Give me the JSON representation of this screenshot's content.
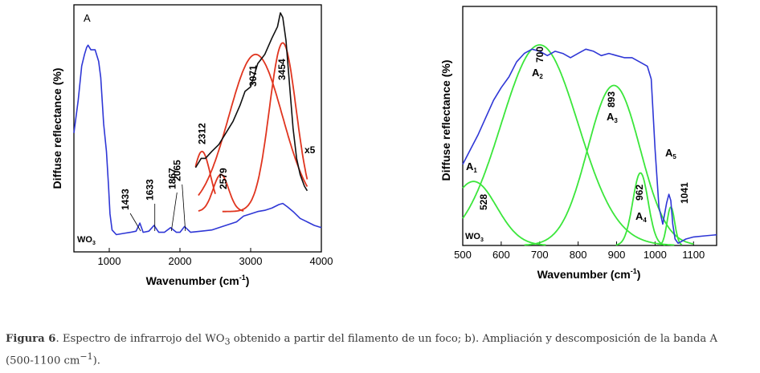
{
  "chart_data": [
    {
      "type": "line",
      "panel_label": "A",
      "xlabel": "Wavenumber (cm",
      "xlabel_sup": "-1",
      "xlabel_close": ")",
      "ylabel": "Diffuse reflectance (%)",
      "xlim": [
        500,
        4000
      ],
      "ylim": [
        0,
        1
      ],
      "grid": false,
      "x_ticks": [
        1000,
        2000,
        3000,
        4000
      ],
      "sample_label": "WO",
      "sample_sub": "3",
      "magnification_label": "x5",
      "colors": {
        "spectrum": "#2f37d6",
        "zoom": "#111111",
        "fit": "#e0351f"
      },
      "series": [
        {
          "name": "WO3 spectrum",
          "x": [
            500,
            560,
            610,
            650,
            680,
            700,
            740,
            800,
            850,
            880,
            920,
            960,
            990,
            1010,
            1040,
            1100,
            1200,
            1300,
            1380,
            1433,
            1480,
            1560,
            1633,
            1700,
            1780,
            1867,
            1950,
            2000,
            2065,
            2150,
            2300,
            2450,
            2600,
            2700,
            2800,
            2900,
            3000,
            3100,
            3200,
            3300,
            3400,
            3454,
            3520,
            3600,
            3700,
            3800,
            3900,
            4000
          ],
          "y": [
            0.48,
            0.62,
            0.77,
            0.82,
            0.85,
            0.86,
            0.84,
            0.84,
            0.79,
            0.72,
            0.52,
            0.4,
            0.25,
            0.13,
            0.06,
            0.04,
            0.045,
            0.05,
            0.055,
            0.09,
            0.05,
            0.055,
            0.08,
            0.05,
            0.05,
            0.07,
            0.05,
            0.05,
            0.075,
            0.05,
            0.055,
            0.06,
            0.075,
            0.085,
            0.095,
            0.12,
            0.13,
            0.14,
            0.145,
            0.155,
            0.17,
            0.175,
            0.16,
            0.14,
            0.11,
            0.095,
            0.08,
            0.07
          ]
        },
        {
          "name": "x5 magnified",
          "x": [
            2220,
            2300,
            2360,
            2450,
            2550,
            2650,
            2750,
            2850,
            2920,
            3000,
            3100,
            3200,
            3300,
            3380,
            3420,
            3454,
            3500,
            3560,
            3600,
            3650,
            3700,
            3760,
            3800
          ],
          "y": [
            0.33,
            0.37,
            0.37,
            0.4,
            0.43,
            0.48,
            0.53,
            0.6,
            0.66,
            0.68,
            0.78,
            0.82,
            0.89,
            0.94,
            1.0,
            0.98,
            0.88,
            0.65,
            0.5,
            0.37,
            0.3,
            0.25,
            0.23
          ]
        },
        {
          "name": "fit 2312",
          "fit_center": 2312,
          "fit_width": 120,
          "fit_amp": 0.26,
          "x_range": [
            2220,
            2500
          ]
        },
        {
          "name": "fit 2579",
          "fit_center": 2579,
          "fit_width": 110,
          "fit_amp": 0.16,
          "x_range": [
            2260,
            2900
          ]
        },
        {
          "name": "fit 3071",
          "fit_center": 3071,
          "fit_width": 380,
          "fit_amp": 0.68,
          "x_range": [
            2260,
            3800
          ]
        },
        {
          "name": "fit 3454",
          "fit_center": 3454,
          "fit_width": 190,
          "fit_amp": 0.73,
          "x_range": [
            2600,
            3800
          ]
        }
      ],
      "annotations": [
        {
          "text": "1433",
          "x": 1433
        },
        {
          "text": "1633",
          "x": 1633
        },
        {
          "text": "1867",
          "x": 1867
        },
        {
          "text": "2065",
          "x": 2065
        },
        {
          "text": "2312",
          "x": 2312
        },
        {
          "text": "2579",
          "x": 2579
        },
        {
          "text": "3071",
          "x": 3071
        },
        {
          "text": "3454",
          "x": 3454
        }
      ]
    },
    {
      "type": "line",
      "xlabel": "Wavenumber (cm",
      "xlabel_sup": "-1",
      "xlabel_close": ")",
      "ylabel": "Diffuse reflectance (%)",
      "xlim": [
        500,
        1160
      ],
      "ylim": [
        0,
        1
      ],
      "grid": false,
      "x_ticks": [
        500,
        600,
        700,
        800,
        900,
        1000,
        1100
      ],
      "sample_label": "WO",
      "sample_sub": "3",
      "colors": {
        "spectrum": "#2f37d6",
        "fit": "#3be63b"
      },
      "series": [
        {
          "name": "WO3 spectrum",
          "x": [
            500,
            520,
            540,
            560,
            580,
            600,
            620,
            640,
            660,
            680,
            700,
            720,
            740,
            760,
            780,
            800,
            820,
            840,
            860,
            880,
            900,
            920,
            940,
            960,
            980,
            990,
            1000,
            1010,
            1020,
            1030,
            1036,
            1041,
            1046,
            1052,
            1060,
            1080,
            1100,
            1130,
            1160
          ],
          "y": [
            0.38,
            0.45,
            0.52,
            0.6,
            0.68,
            0.74,
            0.79,
            0.86,
            0.9,
            0.92,
            0.91,
            0.89,
            0.91,
            0.9,
            0.88,
            0.9,
            0.92,
            0.91,
            0.89,
            0.9,
            0.89,
            0.88,
            0.88,
            0.86,
            0.84,
            0.78,
            0.45,
            0.18,
            0.1,
            0.2,
            0.24,
            0.21,
            0.1,
            0.03,
            0.01,
            0.03,
            0.04,
            0.045,
            0.05
          ]
        }
      ],
      "fits": [
        {
          "name": "A1",
          "label": "A",
          "sub": "1",
          "peak": "528",
          "center": 528,
          "width": 60,
          "amp": 0.3
        },
        {
          "name": "A2",
          "label": "A",
          "sub": "2",
          "peak": "700",
          "center": 700,
          "width": 100,
          "amp": 0.94
        },
        {
          "name": "A3",
          "label": "A",
          "sub": "3",
          "peak": "893",
          "center": 893,
          "width": 68,
          "amp": 0.75
        },
        {
          "name": "A4",
          "label": "A",
          "sub": "4",
          "peak": "962",
          "center": 962,
          "width": 20,
          "amp": 0.34
        },
        {
          "name": "A5",
          "label": "A",
          "sub": "5",
          "peak": "1041",
          "center": 1041,
          "width": 10,
          "amp": 0.18
        }
      ]
    }
  ],
  "caption": {
    "fig_label": "Figura 6",
    "text_before_sub": ". Espectro de infrarrojo del WO",
    "sub": "3",
    "text_line1_rest": " obtenido a partir del filamento de un foco; b). Ampliación y descomposición de la banda A",
    "text_line2": "(500-1100 cm",
    "line2_sup": "−1",
    "line2_end": ")."
  }
}
